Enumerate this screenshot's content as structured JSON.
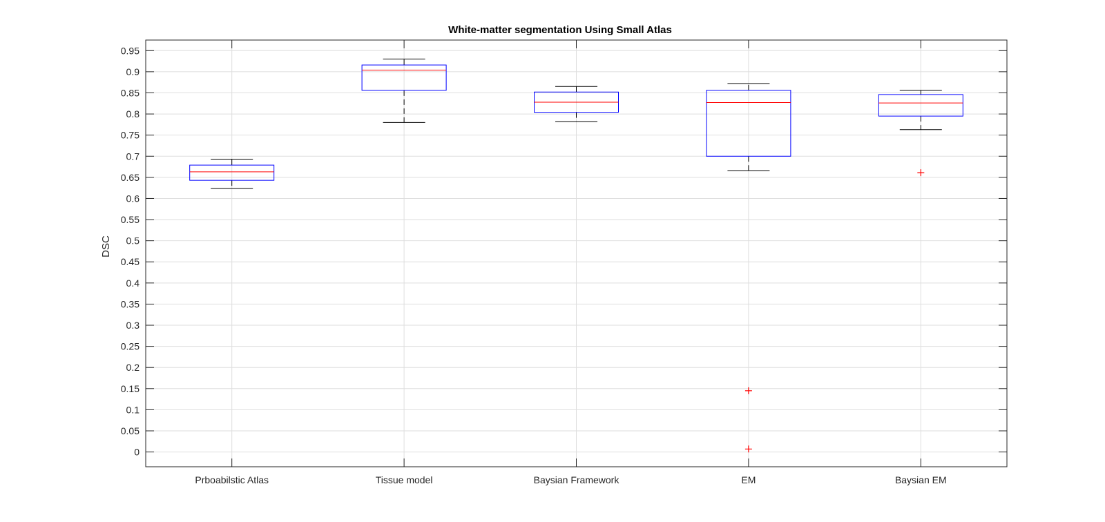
{
  "chart_data": {
    "type": "box",
    "title": "White-matter segmentation Using Small Atlas",
    "xlabel": "",
    "ylabel": "DSC",
    "ylim": [
      -0.035,
      0.975
    ],
    "yticks": [
      0,
      0.05,
      0.1,
      0.15,
      0.2,
      0.25,
      0.3,
      0.35,
      0.4,
      0.45,
      0.5,
      0.55,
      0.6,
      0.65,
      0.7,
      0.75,
      0.8,
      0.85,
      0.9,
      0.95
    ],
    "ytick_labels": [
      "0",
      "0.05",
      "0.1",
      "0.15",
      "0.2",
      "0.25",
      "0.3",
      "0.35",
      "0.4",
      "0.45",
      "0.5",
      "0.55",
      "0.6",
      "0.65",
      "0.7",
      "0.75",
      "0.8",
      "0.85",
      "0.9",
      "0.95"
    ],
    "grid": true,
    "categories": [
      "Prboabilstic Atlas",
      "Tissue model",
      "Baysian Framework",
      "EM",
      "Baysian EM"
    ],
    "boxes": [
      {
        "whisker_low": 0.624,
        "q1": 0.643,
        "median": 0.663,
        "q3": 0.679,
        "whisker_high": 0.693,
        "outliers": []
      },
      {
        "whisker_low": 0.78,
        "q1": 0.856,
        "median": 0.904,
        "q3": 0.916,
        "whisker_high": 0.93,
        "outliers": []
      },
      {
        "whisker_low": 0.782,
        "q1": 0.804,
        "median": 0.828,
        "q3": 0.852,
        "whisker_high": 0.865,
        "outliers": []
      },
      {
        "whisker_low": 0.666,
        "q1": 0.7,
        "median": 0.827,
        "q3": 0.856,
        "whisker_high": 0.872,
        "outliers": [
          0.145,
          0.007
        ]
      },
      {
        "whisker_low": 0.763,
        "q1": 0.795,
        "median": 0.826,
        "q3": 0.846,
        "whisker_high": 0.856,
        "outliers": [
          0.661
        ]
      }
    ],
    "colors": {
      "box": "#0000ff",
      "median": "#ff0000",
      "whisker": "#000000",
      "outlier": "#ff0000",
      "grid": "#dedede",
      "axis": "#262626"
    }
  }
}
